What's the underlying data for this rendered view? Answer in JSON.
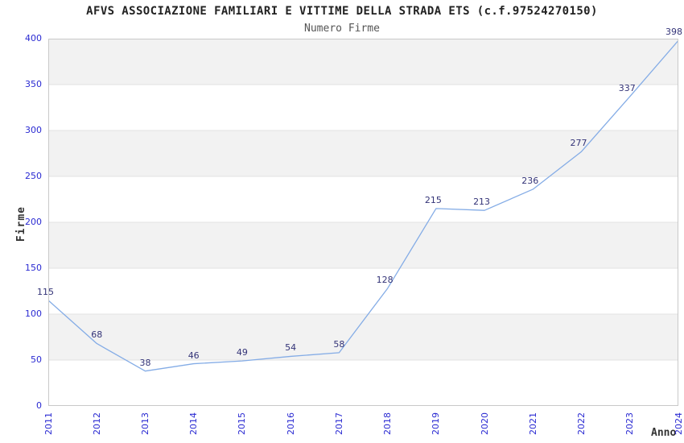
{
  "header": {
    "title": "AFVS ASSOCIAZIONE FAMILIARI E VITTIME DELLA STRADA ETS (c.f.97524270150)",
    "subtitle": "Numero Firme"
  },
  "chart_data": {
    "type": "line",
    "title": "AFVS ASSOCIAZIONE FAMILIARI E VITTIME DELLA STRADA ETS (c.f.97524270150)",
    "subtitle": "Numero Firme",
    "xlabel": "Anno",
    "ylabel": "Firme",
    "x": [
      "2011",
      "2012",
      "2013",
      "2014",
      "2015",
      "2016",
      "2017",
      "2018",
      "2019",
      "2020",
      "2021",
      "2022",
      "2023",
      "2024"
    ],
    "values": [
      115,
      68,
      38,
      46,
      49,
      54,
      58,
      128,
      215,
      213,
      236,
      277,
      337,
      398
    ],
    "data_labels_shown": true,
    "ylim": [
      0,
      400
    ],
    "yticks": [
      0,
      50,
      100,
      150,
      200,
      250,
      300,
      350,
      400
    ],
    "grid": "alternating horizontal bands with gridlines every 50",
    "legend": "none",
    "colors": {
      "line": "#84ace6",
      "tick_labels": "#2a2ad2",
      "data_labels": "#333377",
      "band_gray": "#f2f2f2",
      "gridline": "#e2e2e2",
      "plot_border": "#c9c9c9",
      "title": "#222222",
      "subtitle": "#555555",
      "axis_titles": "#333333",
      "background": "#ffffff"
    }
  }
}
